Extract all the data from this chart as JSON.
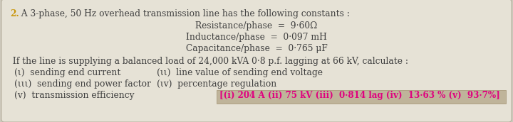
{
  "bg_color": "#cdc9bc",
  "box_color": "#e6e2d6",
  "title_number": "2.",
  "title_text": "  A 3-phase, 50 Hz overhead transmission line has the following constants :",
  "const1": "Resistance/phase  =  9·60Ω",
  "const2": "Inductance/phase  =  0·097 mH",
  "const3": "Capacitance/phase  =  0·765 μF",
  "line1": " If the line is supplying a balanced load of 24,000 kVA 0·8 p.f. lagging at 66 kV, calculate :",
  "li1": "(ι)  sending end current",
  "lii1": "(ιι)  line value of sending end voltage",
  "liii1": "(ιιι)  sending end power factor",
  "liv1": "(ιv)  percentage regulation",
  "lv1": "(v)  transmission efficiency",
  "answer_text": "[(i) 204 A (ii) 75 kV (iii)  0·814 lag (iv)  13·63 % (v)  93·7%]",
  "answer_color": "#e0007f",
  "answer_box_color": "#bfb49a",
  "normal_color": "#404040",
  "number_color": "#c8960c",
  "font_size": 8.8,
  "font_size_ans": 8.6
}
